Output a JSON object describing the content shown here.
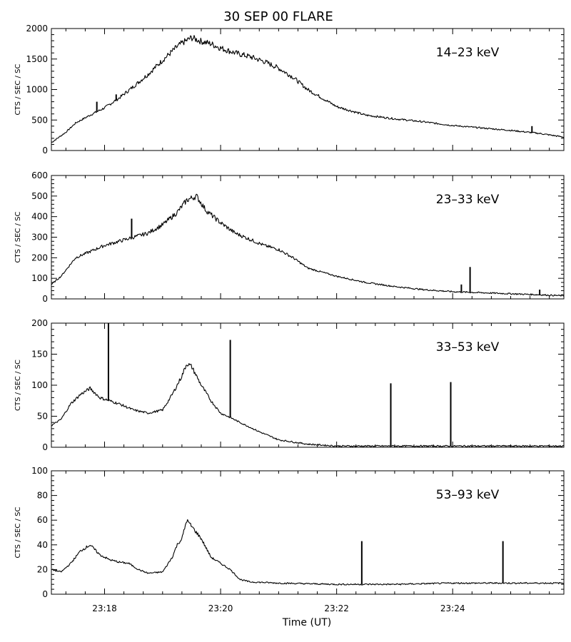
{
  "chart_data": {
    "type": "line",
    "title": "30 SEP 00 FLARE",
    "xlabel": "Time (UT)",
    "xlim": [
      "23:17:05",
      "23:25:55"
    ],
    "x_tick_labels": [
      "23:18",
      "23:20",
      "23:22",
      "23:24"
    ],
    "panels": [
      {
        "band": "14–23 keV",
        "ylabel": "CTS / SEC / SC",
        "ylim": [
          0,
          2000
        ],
        "y_tick_labels": [
          "0",
          "500",
          "1000",
          "1500",
          "2000"
        ],
        "x": [
          "23:17:05",
          "23:17:20",
          "23:17:30",
          "23:17:45",
          "23:18:00",
          "23:18:15",
          "23:18:30",
          "23:18:45",
          "23:19:00",
          "23:19:15",
          "23:19:20",
          "23:19:30",
          "23:19:40",
          "23:19:50",
          "23:20:00",
          "23:20:15",
          "23:20:30",
          "23:20:45",
          "23:21:00",
          "23:21:15",
          "23:21:30",
          "23:22:00",
          "23:22:30",
          "23:23:00",
          "23:23:30",
          "23:24:00",
          "23:24:30",
          "23:25:00",
          "23:25:30",
          "23:25:55"
        ],
        "values": [
          130,
          300,
          450,
          580,
          700,
          860,
          1050,
          1250,
          1480,
          1700,
          1760,
          1850,
          1790,
          1750,
          1680,
          1600,
          1540,
          1460,
          1350,
          1200,
          1000,
          720,
          580,
          520,
          470,
          410,
          370,
          330,
          280,
          220
        ],
        "spikes": [
          {
            "x": "23:17:52",
            "value": 800
          },
          {
            "x": "23:18:12",
            "value": 920
          },
          {
            "x": "23:25:22",
            "value": 400
          }
        ]
      },
      {
        "band": "23–33 keV",
        "ylabel": "CTS / SEC / SC",
        "ylim": [
          0,
          600
        ],
        "y_tick_labels": [
          "0",
          "100",
          "200",
          "300",
          "400",
          "500",
          "600"
        ],
        "x": [
          "23:17:05",
          "23:17:15",
          "23:17:30",
          "23:17:45",
          "23:18:00",
          "23:18:15",
          "23:18:30",
          "23:18:45",
          "23:19:00",
          "23:19:15",
          "23:19:25",
          "23:19:35",
          "23:19:45",
          "23:20:00",
          "23:20:15",
          "23:20:30",
          "23:20:45",
          "23:21:00",
          "23:21:15",
          "23:21:30",
          "23:22:00",
          "23:22:30",
          "23:23:00",
          "23:23:30",
          "23:24:00",
          "23:24:30",
          "23:25:00",
          "23:25:30",
          "23:25:55"
        ],
        "values": [
          70,
          110,
          200,
          230,
          260,
          280,
          300,
          320,
          360,
          420,
          480,
          500,
          430,
          370,
          320,
          290,
          260,
          240,
          200,
          150,
          110,
          80,
          60,
          45,
          35,
          30,
          25,
          20,
          15
        ],
        "spikes": [
          {
            "x": "23:18:28",
            "value": 390
          },
          {
            "x": "23:24:09",
            "value": 70
          },
          {
            "x": "23:24:18",
            "value": 155
          },
          {
            "x": "23:25:30",
            "value": 45
          }
        ]
      },
      {
        "band": "33–53 keV",
        "ylabel": "CTS / SEC / SC",
        "ylim": [
          0,
          200
        ],
        "y_tick_labels": [
          "0",
          "50",
          "100",
          "150",
          "200"
        ],
        "x": [
          "23:17:05",
          "23:17:15",
          "23:17:25",
          "23:17:35",
          "23:17:45",
          "23:17:55",
          "23:18:05",
          "23:18:15",
          "23:18:30",
          "23:18:45",
          "23:19:00",
          "23:19:10",
          "23:19:20",
          "23:19:25",
          "23:19:30",
          "23:19:40",
          "23:19:50",
          "23:20:00",
          "23:20:10",
          "23:20:20",
          "23:20:40",
          "23:21:00",
          "23:21:30",
          "23:22:00",
          "23:23:00",
          "23:24:00",
          "23:25:00",
          "23:25:55"
        ],
        "values": [
          35,
          45,
          70,
          85,
          95,
          80,
          75,
          70,
          60,
          55,
          60,
          85,
          115,
          135,
          130,
          100,
          75,
          55,
          48,
          40,
          25,
          12,
          5,
          2,
          2,
          2,
          2,
          2
        ],
        "spikes": [
          {
            "x": "23:18:04",
            "value": 200
          },
          {
            "x": "23:20:10",
            "value": 173
          },
          {
            "x": "23:22:56",
            "value": 103
          },
          {
            "x": "23:23:58",
            "value": 105
          }
        ]
      },
      {
        "band": "53–93 keV",
        "ylabel": "CTS / SEC / SC",
        "ylim": [
          0,
          100
        ],
        "y_tick_labels": [
          "0",
          "20",
          "40",
          "60",
          "80",
          "100"
        ],
        "x": [
          "23:17:05",
          "23:17:15",
          "23:17:25",
          "23:17:35",
          "23:17:45",
          "23:17:55",
          "23:18:05",
          "23:18:15",
          "23:18:25",
          "23:18:35",
          "23:18:45",
          "23:19:00",
          "23:19:10",
          "23:19:15",
          "23:19:20",
          "23:19:25",
          "23:19:30",
          "23:19:40",
          "23:19:50",
          "23:20:00",
          "23:20:10",
          "23:20:20",
          "23:20:30",
          "23:21:00",
          "23:22:00",
          "23:23:00",
          "23:24:00",
          "23:25:00",
          "23:25:55"
        ],
        "values": [
          20,
          18,
          25,
          35,
          40,
          32,
          28,
          26,
          25,
          20,
          17,
          18,
          30,
          40,
          45,
          60,
          55,
          45,
          30,
          25,
          20,
          12,
          10,
          9,
          8,
          8,
          9,
          9,
          9
        ],
        "spikes": [
          {
            "x": "23:22:26",
            "value": 43
          },
          {
            "x": "23:24:52",
            "value": 43
          }
        ]
      }
    ]
  }
}
